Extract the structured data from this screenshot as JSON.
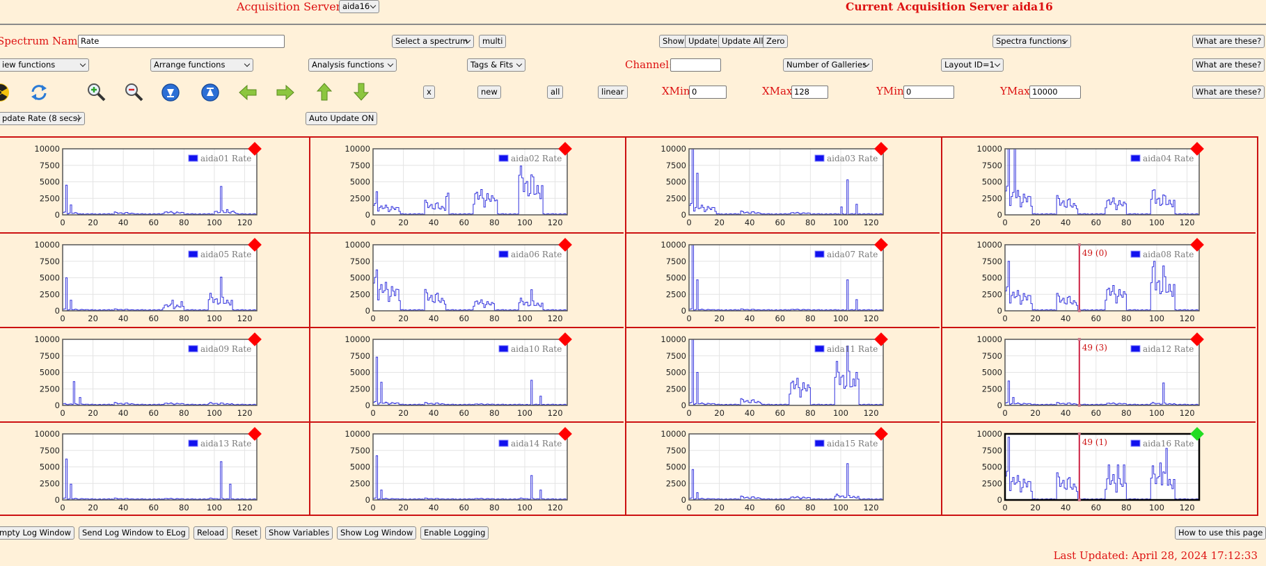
{
  "header": {
    "acq_servers_label": "Acquisition Servers",
    "acq_server_value": "aida16",
    "current_server_title": "Current Acquisition Server aida16"
  },
  "row1": {
    "spectrum_name_label": "Spectrum Name:",
    "spectrum_name_value": "Rate",
    "select_spectrum": "Select a spectrum",
    "multi": "multi",
    "show": "Show",
    "update": "Update",
    "update_all": "Update All",
    "zero": "Zero",
    "spectra_functions": "Spectra functions",
    "what_are_these": "What are these?"
  },
  "row2": {
    "view_functions": "iew functions",
    "arrange_functions": "Arrange functions",
    "analysis_functions": "Analysis functions",
    "tags_fits": "Tags & Fits",
    "channel_label": "Channel:",
    "channel_value": "",
    "number_of_galleries": "Number of Galleries",
    "layout": "Layout ID=1",
    "what_are_these": "What are these?"
  },
  "row3": {
    "icons": [
      "radiation-icon",
      "refresh-icon",
      "zoom-in-icon",
      "zoom-out-icon",
      "down-circle-icon",
      "up-circle-icon",
      "arrow-left-icon",
      "arrow-right-icon",
      "arrow-up-icon",
      "arrow-down-icon"
    ],
    "x": "x",
    "new": "new",
    "all": "all",
    "linear": "linear",
    "xmin_label": "XMin",
    "xmin_value": "0",
    "xmax_label": "XMax",
    "xmax_value": "128",
    "ymin_label": "YMin",
    "ymin_value": "0",
    "ymax_label": "YMax",
    "ymax_value": "10000",
    "what_are_these": "What are these?"
  },
  "row4": {
    "update_rate": "pdate Rate (8 secs)",
    "auto_update": "Auto Update ON"
  },
  "chart_data": [
    {
      "type": "line",
      "legend": "aida01 Rate",
      "xlim": [
        0,
        128
      ],
      "ylim": [
        0,
        10000
      ],
      "xticks": [
        0,
        20,
        40,
        60,
        80,
        100,
        120
      ],
      "yticks": [
        0,
        2500,
        5000,
        7500,
        10000
      ],
      "marker_color": "#ff0000",
      "spikes": [
        [
          2,
          4500
        ],
        [
          5,
          1500
        ],
        [
          104,
          4300
        ],
        [
          108,
          800
        ]
      ],
      "segments": [
        [
          0,
          12,
          300
        ],
        [
          34,
          48,
          300
        ],
        [
          66,
          80,
          400
        ],
        [
          100,
          115,
          500
        ]
      ]
    },
    {
      "type": "line",
      "legend": "aida02 Rate",
      "xlim": [
        0,
        128
      ],
      "ylim": [
        0,
        10000
      ],
      "xticks": [
        0,
        20,
        40,
        60,
        80,
        100,
        120
      ],
      "yticks": [
        0,
        2500,
        5000,
        7500,
        10000
      ],
      "marker_color": "#ff0000",
      "spikes": [
        [
          2,
          3500
        ],
        [
          96,
          6000
        ]
      ],
      "segments": [
        [
          0,
          18,
          1200
        ],
        [
          34,
          48,
          1500
        ],
        [
          48,
          50,
          2500
        ],
        [
          66,
          80,
          3000
        ],
        [
          80,
          82,
          4000
        ],
        [
          96,
          112,
          5000
        ]
      ]
    },
    {
      "type": "line",
      "legend": "aida03 Rate",
      "xlim": [
        0,
        128
      ],
      "ylim": [
        0,
        10000
      ],
      "xticks": [
        0,
        20,
        40,
        60,
        80,
        100,
        120
      ],
      "yticks": [
        0,
        2500,
        5000,
        7500,
        10000
      ],
      "marker_color": "#ff0000",
      "spikes": [
        [
          2,
          10000
        ],
        [
          5,
          6300
        ],
        [
          104,
          5300
        ],
        [
          110,
          1600
        ],
        [
          100,
          1200
        ]
      ],
      "segments": [
        [
          0,
          18,
          1200
        ],
        [
          34,
          48,
          400
        ],
        [
          66,
          80,
          300
        ]
      ]
    },
    {
      "type": "line",
      "legend": "aida04 Rate",
      "xlim": [
        0,
        128
      ],
      "ylim": [
        0,
        10000
      ],
      "xticks": [
        0,
        20,
        40,
        60,
        80,
        100,
        120
      ],
      "yticks": [
        0,
        2500,
        5000,
        7500,
        10000
      ],
      "marker_color": "#ff0000",
      "spikes": [
        [
          2,
          10000
        ],
        [
          6,
          10000
        ],
        [
          98,
          3800
        ]
      ],
      "segments": [
        [
          0,
          18,
          3000
        ],
        [
          34,
          48,
          2000
        ],
        [
          66,
          80,
          2000
        ],
        [
          96,
          112,
          2500
        ]
      ]
    },
    {
      "type": "line",
      "legend": "aida05 Rate",
      "xlim": [
        0,
        128
      ],
      "ylim": [
        0,
        10000
      ],
      "xticks": [
        0,
        20,
        40,
        60,
        80,
        100,
        120
      ],
      "yticks": [
        0,
        2500,
        5000,
        7500,
        10000
      ],
      "marker_color": "#ff0000",
      "spikes": [
        [
          2,
          5000
        ],
        [
          5,
          1600
        ],
        [
          104,
          5100
        ],
        [
          72,
          1600
        ],
        [
          78,
          1400
        ]
      ],
      "segments": [
        [
          0,
          18,
          200
        ],
        [
          34,
          48,
          200
        ],
        [
          66,
          80,
          800
        ],
        [
          96,
          112,
          1800
        ]
      ]
    },
    {
      "type": "line",
      "legend": "aida06 Rate",
      "xlim": [
        0,
        128
      ],
      "ylim": [
        0,
        10000
      ],
      "xticks": [
        0,
        20,
        40,
        60,
        80,
        100,
        120
      ],
      "yticks": [
        0,
        2500,
        5000,
        7500,
        10000
      ],
      "marker_color": "#ff0000",
      "spikes": [
        [
          2,
          6200
        ],
        [
          104,
          3200
        ]
      ],
      "segments": [
        [
          0,
          18,
          3500
        ],
        [
          34,
          48,
          2200
        ],
        [
          66,
          80,
          1300
        ],
        [
          96,
          112,
          1300
        ]
      ]
    },
    {
      "type": "line",
      "legend": "aida07 Rate",
      "xlim": [
        0,
        128
      ],
      "ylim": [
        0,
        10000
      ],
      "xticks": [
        0,
        20,
        40,
        60,
        80,
        100,
        120
      ],
      "yticks": [
        0,
        2500,
        5000,
        7500,
        10000
      ],
      "marker_color": "#ff0000",
      "spikes": [
        [
          2,
          10000
        ],
        [
          5,
          4700
        ],
        [
          104,
          4700
        ],
        [
          110,
          1700
        ]
      ],
      "segments": [
        [
          0,
          18,
          200
        ],
        [
          34,
          48,
          200
        ],
        [
          66,
          80,
          200
        ]
      ]
    },
    {
      "type": "line",
      "legend": "aida08 Rate",
      "xlim": [
        0,
        128
      ],
      "ylim": [
        0,
        10000
      ],
      "xticks": [
        0,
        20,
        40,
        60,
        80,
        100,
        120
      ],
      "yticks": [
        0,
        2500,
        5000,
        7500,
        10000
      ],
      "marker_color": "#ff0000",
      "cursor_label": "49 (0)",
      "cursor_x": 49,
      "spikes": [
        [
          2,
          7500
        ],
        [
          98,
          7500
        ],
        [
          104,
          6800
        ]
      ],
      "segments": [
        [
          0,
          18,
          2500
        ],
        [
          34,
          48,
          1800
        ],
        [
          66,
          80,
          3000
        ],
        [
          96,
          112,
          4500
        ]
      ]
    },
    {
      "type": "line",
      "legend": "aida09 Rate",
      "xlim": [
        0,
        128
      ],
      "ylim": [
        0,
        10000
      ],
      "xticks": [
        0,
        20,
        40,
        60,
        80,
        100,
        120
      ],
      "yticks": [
        0,
        2500,
        5000,
        7500,
        10000
      ],
      "marker_color": "#ff0000",
      "spikes": [
        [
          7,
          3600
        ],
        [
          11,
          1200
        ]
      ],
      "segments": [
        [
          0,
          18,
          200
        ],
        [
          34,
          48,
          300
        ],
        [
          66,
          80,
          300
        ],
        [
          96,
          112,
          300
        ]
      ]
    },
    {
      "type": "line",
      "legend": "aida10 Rate",
      "xlim": [
        0,
        128
      ],
      "ylim": [
        0,
        10000
      ],
      "xticks": [
        0,
        20,
        40,
        60,
        80,
        100,
        120
      ],
      "yticks": [
        0,
        2500,
        5000,
        7500,
        10000
      ],
      "marker_color": "#ff0000",
      "spikes": [
        [
          2,
          7300
        ],
        [
          5,
          3500
        ],
        [
          104,
          3800
        ],
        [
          110,
          1400
        ]
      ],
      "segments": [
        [
          0,
          18,
          400
        ],
        [
          34,
          48,
          300
        ],
        [
          66,
          80,
          200
        ]
      ]
    },
    {
      "type": "line",
      "legend": "aida11 Rate",
      "xlim": [
        0,
        128
      ],
      "ylim": [
        0,
        10000
      ],
      "xticks": [
        0,
        20,
        40,
        60,
        80,
        100,
        120
      ],
      "yticks": [
        0,
        2500,
        5000,
        7500,
        10000
      ],
      "marker_color": "#ff0000",
      "spikes": [
        [
          2,
          10000
        ],
        [
          5,
          5000
        ],
        [
          104,
          9000
        ],
        [
          110,
          5000
        ]
      ],
      "segments": [
        [
          0,
          18,
          300
        ],
        [
          34,
          48,
          700
        ],
        [
          66,
          80,
          3200
        ],
        [
          96,
          112,
          4500
        ]
      ]
    },
    {
      "type": "line",
      "legend": "aida12 Rate",
      "xlim": [
        0,
        128
      ],
      "ylim": [
        0,
        10000
      ],
      "xticks": [
        0,
        20,
        40,
        60,
        80,
        100,
        120
      ],
      "yticks": [
        0,
        2500,
        5000,
        7500,
        10000
      ],
      "marker_color": "#ff0000",
      "cursor_label": "49 (3)",
      "cursor_x": 49,
      "spikes": [
        [
          2,
          3700
        ],
        [
          5,
          1200
        ],
        [
          104,
          3400
        ]
      ],
      "segments": [
        [
          0,
          18,
          300
        ],
        [
          34,
          48,
          300
        ],
        [
          66,
          80,
          300
        ],
        [
          96,
          112,
          300
        ]
      ]
    },
    {
      "type": "line",
      "legend": "aida13 Rate",
      "xlim": [
        0,
        128
      ],
      "ylim": [
        0,
        10000
      ],
      "xticks": [
        0,
        20,
        40,
        60,
        80,
        100,
        120
      ],
      "yticks": [
        0,
        2500,
        5000,
        7500,
        10000
      ],
      "marker_color": "#ff0000",
      "spikes": [
        [
          2,
          6200
        ],
        [
          5,
          2400
        ],
        [
          104,
          5800
        ],
        [
          110,
          2400
        ]
      ],
      "segments": [
        [
          0,
          18,
          200
        ],
        [
          34,
          48,
          200
        ],
        [
          66,
          80,
          200
        ],
        [
          96,
          112,
          200
        ]
      ]
    },
    {
      "type": "line",
      "legend": "aida14 Rate",
      "xlim": [
        0,
        128
      ],
      "ylim": [
        0,
        10000
      ],
      "xticks": [
        0,
        20,
        40,
        60,
        80,
        100,
        120
      ],
      "yticks": [
        0,
        2500,
        5000,
        7500,
        10000
      ],
      "marker_color": "#ff0000",
      "spikes": [
        [
          2,
          6700
        ],
        [
          5,
          1500
        ],
        [
          104,
          3700
        ],
        [
          110,
          1500
        ]
      ],
      "segments": [
        [
          0,
          18,
          200
        ],
        [
          34,
          48,
          200
        ],
        [
          66,
          80,
          200
        ],
        [
          96,
          112,
          200
        ]
      ]
    },
    {
      "type": "line",
      "legend": "aida15 Rate",
      "xlim": [
        0,
        128
      ],
      "ylim": [
        0,
        10000
      ],
      "xticks": [
        0,
        20,
        40,
        60,
        80,
        100,
        120
      ],
      "yticks": [
        0,
        2500,
        5000,
        7500,
        10000
      ],
      "marker_color": "#ff0000",
      "spikes": [
        [
          2,
          4600
        ],
        [
          5,
          1100
        ],
        [
          104,
          5500
        ]
      ],
      "segments": [
        [
          0,
          18,
          200
        ],
        [
          34,
          48,
          400
        ],
        [
          66,
          80,
          400
        ],
        [
          96,
          112,
          600
        ]
      ]
    },
    {
      "type": "line",
      "legend": "aida16 Rate",
      "xlim": [
        0,
        128
      ],
      "ylim": [
        0,
        10000
      ],
      "xticks": [
        0,
        20,
        40,
        60,
        80,
        100,
        120
      ],
      "yticks": [
        0,
        2500,
        5000,
        7500,
        10000
      ],
      "marker_color": "#22dd22",
      "selected": true,
      "cursor_label": "49 (1)",
      "cursor_x": 49,
      "spikes": [
        [
          2,
          9500
        ],
        [
          68,
          5300
        ],
        [
          74,
          5300
        ],
        [
          78,
          5300
        ],
        [
          102,
          5600
        ],
        [
          106,
          7800
        ]
      ],
      "segments": [
        [
          0,
          18,
          3000
        ],
        [
          34,
          48,
          2800
        ],
        [
          66,
          80,
          3000
        ],
        [
          96,
          112,
          3500
        ]
      ]
    }
  ],
  "footer": {
    "buttons": [
      "mpty Log Window",
      "Send Log Window to ELog",
      "Reload",
      "Reset",
      "Show Variables",
      "Show Log Window",
      "Enable Logging"
    ],
    "how_to_use": "How to use this page",
    "last_updated": "Last Updated: April 28, 2024 17:12:33"
  }
}
